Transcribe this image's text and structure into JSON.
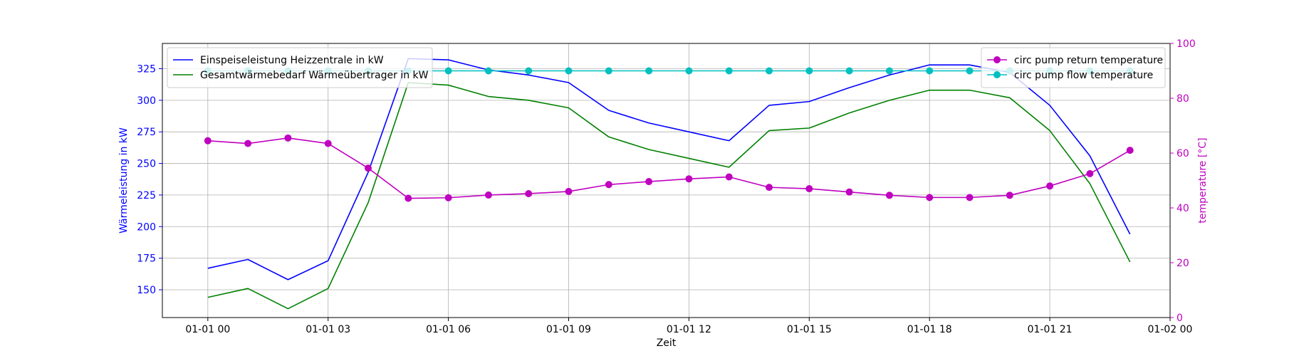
{
  "chart_data": {
    "type": "line",
    "xlabel": "Zeit",
    "ylabel_left": "Wärmeleistung in kW",
    "ylabel_right": "temperature [°C]",
    "x_ticks": [
      "01-01 00",
      "01-01 03",
      "01-01 06",
      "01-01 09",
      "01-01 12",
      "01-01 15",
      "01-01 18",
      "01-01 21",
      "01-02 00"
    ],
    "x": [
      "01-01 00",
      "01-01 01",
      "01-01 02",
      "01-01 03",
      "01-01 04",
      "01-01 05",
      "01-01 06",
      "01-01 07",
      "01-01 08",
      "01-01 09",
      "01-01 10",
      "01-01 11",
      "01-01 12",
      "01-01 13",
      "01-01 14",
      "01-01 15",
      "01-01 16",
      "01-01 17",
      "01-01 18",
      "01-01 19",
      "01-01 20",
      "01-01 21",
      "01-01 22",
      "01-01 23"
    ],
    "x_range": [
      "2023-12-31 22:52",
      "01-02 00"
    ],
    "ylim_left": [
      128,
      345
    ],
    "yticks_left": [
      150,
      175,
      200,
      225,
      250,
      275,
      300,
      325
    ],
    "ylim_right": [
      0,
      100
    ],
    "yticks_right": [
      0,
      20,
      40,
      60,
      80,
      100
    ],
    "grid": true,
    "left_axis_color": "#0000ff",
    "right_axis_color": "#bf00bf",
    "legend_left_placement": "top-left",
    "legend_right_placement": "top-right",
    "series_left": [
      {
        "name": "Einspeiseleistung Heizzentrale in kW",
        "color": "#0000ff",
        "marker": "none",
        "values": [
          167,
          174,
          158,
          173,
          243,
          333,
          332,
          324,
          320,
          314,
          292,
          282,
          275,
          268,
          296,
          299,
          310,
          320,
          328,
          328,
          322,
          296,
          256,
          194
        ]
      },
      {
        "name": "Gesamtwärmebedarf Wärmeübertrager in kW",
        "color": "#008000",
        "marker": "none",
        "values": [
          144,
          151,
          135,
          151,
          219,
          314,
          312,
          303,
          300,
          294,
          271,
          261,
          254,
          247,
          276,
          278,
          290,
          300,
          308,
          308,
          302,
          276,
          234,
          172
        ]
      }
    ],
    "series_right": [
      {
        "name": "circ pump return temperature",
        "color": "#bf00bf",
        "marker": "circle",
        "values": [
          64.5,
          63.5,
          65.5,
          63.5,
          54.5,
          43.5,
          43.7,
          44.7,
          45.2,
          46.0,
          48.5,
          49.6,
          50.6,
          51.3,
          47.5,
          47.0,
          45.8,
          44.6,
          43.8,
          43.8,
          44.6,
          48.0,
          52.5,
          61.0
        ]
      },
      {
        "name": "circ pump flow temperature",
        "color": "#00bfbf",
        "marker": "circle",
        "values": [
          90,
          90,
          90,
          90,
          90,
          90,
          90,
          90,
          90,
          90,
          90,
          90,
          90,
          90,
          90,
          90,
          90,
          90,
          90,
          90,
          90,
          90,
          90,
          90
        ]
      }
    ]
  }
}
